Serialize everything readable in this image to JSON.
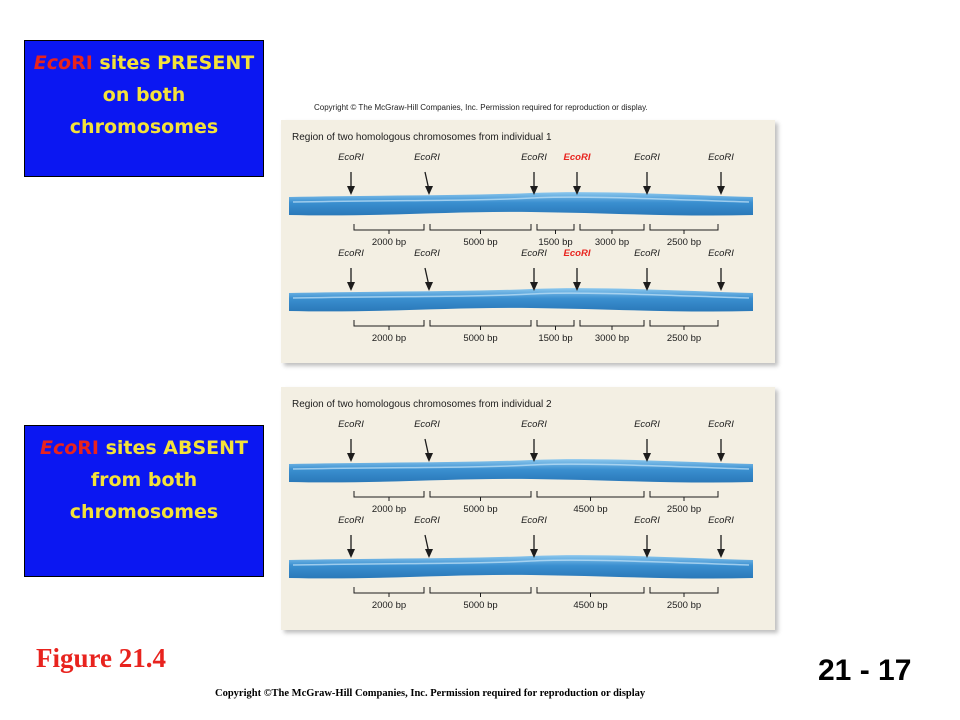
{
  "left_labels": {
    "present": {
      "eco": "Eco",
      "ri": "RI",
      "line1_rest": " sites PRESENT",
      "line2": "on both",
      "line3": "chromosomes"
    },
    "absent": {
      "eco": "Eco",
      "ri": "RI",
      "line1_rest": " sites ABSENT",
      "line2": "from both",
      "line3": "chromosomes"
    }
  },
  "copyright_top": "Copyright © The McGraw-Hill Companies, Inc. Permission required for reproduction or display.",
  "panels": [
    {
      "title": "Region of two homologous chromosomes from individual  1",
      "chromosomes": [
        {
          "sites": [
            {
              "label": "EcoRI",
              "highlight": false
            },
            {
              "label": "EcoRI",
              "highlight": false
            },
            {
              "label": "EcoRI",
              "highlight": false
            },
            {
              "label": "EcoRI",
              "highlight": true
            },
            {
              "label": "EcoRI",
              "highlight": false
            },
            {
              "label": "EcoRI",
              "highlight": false
            }
          ],
          "fragments": [
            "2000 bp",
            "5000 bp",
            "1500 bp",
            "3000 bp",
            "2500 bp"
          ]
        },
        {
          "sites": [
            {
              "label": "EcoRI",
              "highlight": false
            },
            {
              "label": "EcoRI",
              "highlight": false
            },
            {
              "label": "EcoRI",
              "highlight": false
            },
            {
              "label": "EcoRI",
              "highlight": true
            },
            {
              "label": "EcoRI",
              "highlight": false
            },
            {
              "label": "EcoRI",
              "highlight": false
            }
          ],
          "fragments": [
            "2000 bp",
            "5000 bp",
            "1500 bp",
            "3000 bp",
            "2500 bp"
          ]
        }
      ]
    },
    {
      "title": "Region of two homologous chromosomes from individual  2",
      "chromosomes": [
        {
          "sites": [
            {
              "label": "EcoRI",
              "highlight": false
            },
            {
              "label": "EcoRI",
              "highlight": false
            },
            {
              "label": "EcoRI",
              "highlight": false
            },
            {
              "label": "EcoRI",
              "highlight": false
            },
            {
              "label": "EcoRI",
              "highlight": false
            }
          ],
          "fragments": [
            "2000 bp",
            "5000 bp",
            "4500 bp",
            "2500 bp"
          ]
        },
        {
          "sites": [
            {
              "label": "EcoRI",
              "highlight": false
            },
            {
              "label": "EcoRI",
              "highlight": false
            },
            {
              "label": "EcoRI",
              "highlight": false
            },
            {
              "label": "EcoRI",
              "highlight": false
            },
            {
              "label": "EcoRI",
              "highlight": false
            }
          ],
          "fragments": [
            "2000 bp",
            "5000 bp",
            "4500 bp",
            "2500 bp"
          ]
        }
      ]
    }
  ],
  "colors": {
    "blue_box": "#0b17f2",
    "yellow_text": "#f4e23a",
    "red_text": "#e8231e",
    "panel_bg": "#f3efe3",
    "chromosome": "#3a8fd0"
  },
  "figure_label": "Figure 21.4",
  "page_number": "21 - 17",
  "copyright_bottom": "Copyright ©The McGraw-Hill Companies, Inc. Permission required for reproduction or display"
}
